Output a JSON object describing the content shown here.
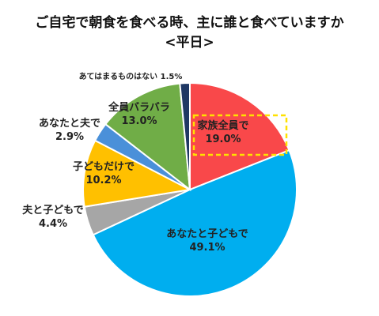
{
  "chart_data": {
    "type": "pie",
    "title": "ご自宅で朝食を食べる時、主に誰と食べていますか",
    "subtitle": "<平日>",
    "slices": [
      {
        "label": "家族全員で",
        "value": 19.0,
        "display": "19.0%",
        "color": "#F9484A"
      },
      {
        "label": "あなたと子どもで",
        "value": 49.1,
        "display": "49.1%",
        "color": "#00AEEF"
      },
      {
        "label": "夫と子どもで",
        "value": 4.4,
        "display": "4.4%",
        "color": "#A6A6A6"
      },
      {
        "label": "子どもだけで",
        "value": 10.2,
        "display": "10.2%",
        "color": "#FFC000"
      },
      {
        "label": "あなたと夫で",
        "value": 2.9,
        "display": "2.9%",
        "color": "#4A90D9"
      },
      {
        "label": "全員バラバラ",
        "value": 13.0,
        "display": "13.0%",
        "color": "#70AD47"
      },
      {
        "label": "あてはまるものはない",
        "value": 1.5,
        "display": "1.5%",
        "color": "#1F3864"
      }
    ],
    "highlight": "家族全員で",
    "highlight_color": "#FFE100"
  }
}
